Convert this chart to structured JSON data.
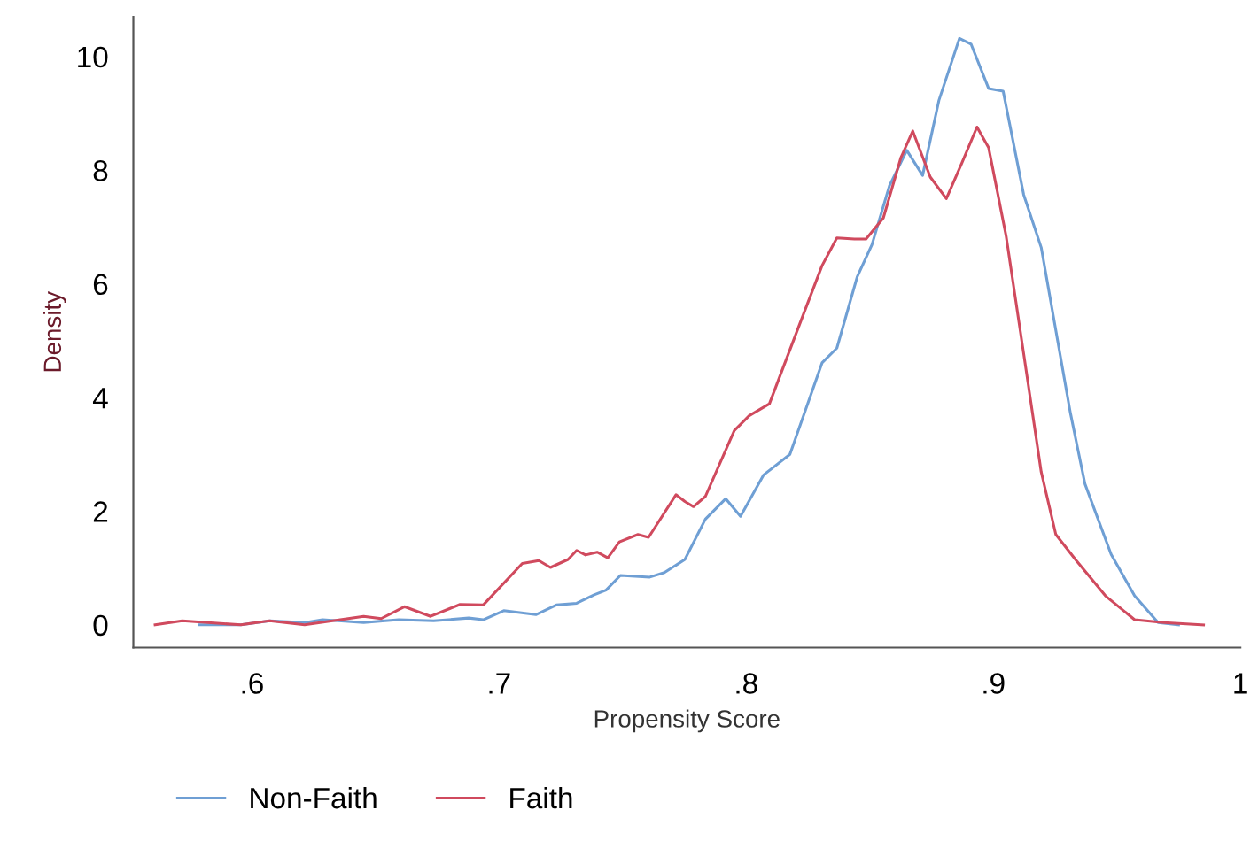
{
  "chart_data": {
    "type": "line",
    "xlabel": "Propensity Score",
    "ylabel": "Density",
    "xlim": [
      0.552,
      1.0
    ],
    "xticks": [
      {
        "value": 0.6,
        "label": ".6"
      },
      {
        "value": 0.7,
        "label": ".7"
      },
      {
        "value": 0.8,
        "label": ".8"
      },
      {
        "value": 0.9,
        "label": ".9"
      },
      1
    ],
    "ylim": [
      -0.4,
      10.7
    ],
    "yticks": [
      0,
      2,
      4,
      6,
      8,
      10
    ],
    "grid": false,
    "legend": "bottom",
    "marker": "none",
    "line_style": "solid",
    "series": [
      {
        "name": "Non-Faith",
        "color": "#6f9fd4",
        "x": [
          0.5789,
          0.5955,
          0.6073,
          0.6215,
          0.6286,
          0.6452,
          0.6594,
          0.6735,
          0.6877,
          0.6936,
          0.7019,
          0.7149,
          0.7232,
          0.7314,
          0.7385,
          0.7433,
          0.7491,
          0.761,
          0.7669,
          0.7752,
          0.7835,
          0.7917,
          0.7977,
          0.8071,
          0.8177,
          0.8307,
          0.8367,
          0.8449,
          0.8509,
          0.858,
          0.865,
          0.8714,
          0.878,
          0.8863,
          0.891,
          0.8981,
          0.904,
          0.9123,
          0.9194,
          0.9312,
          0.9371,
          0.9477,
          0.9572,
          0.9667,
          0.975
        ],
        "values": [
          0.0,
          0.0,
          0.07,
          0.04,
          0.09,
          0.04,
          0.09,
          0.07,
          0.12,
          0.09,
          0.25,
          0.18,
          0.35,
          0.38,
          0.53,
          0.61,
          0.87,
          0.84,
          0.92,
          1.15,
          1.86,
          2.22,
          1.91,
          2.64,
          3.0,
          4.61,
          4.87,
          6.12,
          6.69,
          7.73,
          8.35,
          7.91,
          9.23,
          10.32,
          10.22,
          9.44,
          9.39,
          7.57,
          6.64,
          3.73,
          2.48,
          1.24,
          0.51,
          0.04,
          0.0
        ]
      },
      {
        "name": "Faith",
        "color": "#d04a5e",
        "x": [
          0.5608,
          0.5718,
          0.5955,
          0.6071,
          0.6213,
          0.6452,
          0.6523,
          0.6617,
          0.6723,
          0.6842,
          0.6936,
          0.7094,
          0.7161,
          0.7208,
          0.7279,
          0.7314,
          0.735,
          0.7397,
          0.744,
          0.7487,
          0.7562,
          0.7605,
          0.7716,
          0.7752,
          0.7787,
          0.7835,
          0.7952,
          0.8012,
          0.8094,
          0.8225,
          0.8307,
          0.8367,
          0.8438,
          0.8485,
          0.8555,
          0.8626,
          0.8674,
          0.8745,
          0.881,
          0.8874,
          0.8934,
          0.8981,
          0.9052,
          0.9123,
          0.9194,
          0.9253,
          0.9336,
          0.9454,
          0.9572,
          0.969,
          0.9851
        ],
        "values": [
          0.0,
          0.07,
          0.0,
          0.07,
          0.0,
          0.15,
          0.11,
          0.32,
          0.15,
          0.36,
          0.35,
          1.08,
          1.13,
          1.01,
          1.15,
          1.31,
          1.23,
          1.28,
          1.18,
          1.46,
          1.59,
          1.54,
          2.29,
          2.17,
          2.08,
          2.26,
          3.42,
          3.68,
          3.89,
          5.39,
          6.32,
          6.81,
          6.79,
          6.79,
          7.16,
          8.22,
          8.69,
          7.88,
          7.5,
          8.14,
          8.76,
          8.4,
          6.84,
          4.77,
          2.69,
          1.59,
          1.13,
          0.51,
          0.09,
          0.04,
          0.0
        ]
      }
    ]
  }
}
